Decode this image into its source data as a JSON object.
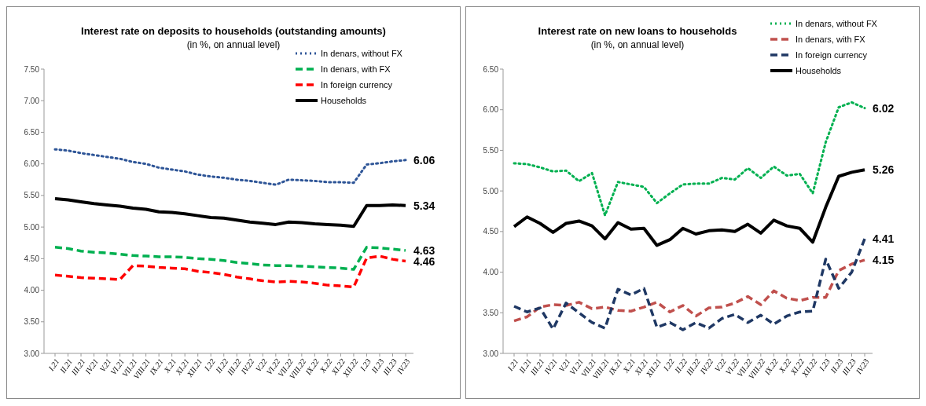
{
  "chart_data": [
    {
      "type": "line",
      "title": "Interest rate on deposits to households (outstanding amounts)",
      "subtitle": "(in %, on annual level)",
      "categories": [
        "I.21",
        "II.21",
        "III.21",
        "IV.21",
        "V.21",
        "VI.21",
        "VII.21",
        "VIII.21",
        "IX.21",
        "X.21",
        "XI.21",
        "XII.21",
        "I.22",
        "II.22",
        "III.22",
        "IV.22",
        "V.22",
        "VI.22",
        "VII.22",
        "VIII.22",
        "IX.22",
        "X.22",
        "XI.22",
        "XII.22",
        "I.23",
        "II.23",
        "III.23",
        "IV.23"
      ],
      "ylim": [
        3,
        7.5
      ],
      "yticks": [
        {
          "value": 3,
          "label": "3.00"
        },
        {
          "value": 3.5,
          "label": "3.50"
        },
        {
          "value": 4,
          "label": "4.00"
        },
        {
          "value": 4.5,
          "label": "4.50"
        },
        {
          "value": 5,
          "label": "5.00"
        },
        {
          "value": 5.5,
          "label": "5.50"
        },
        {
          "value": 6,
          "label": "6.00"
        },
        {
          "value": 6.5,
          "label": "6.50"
        },
        {
          "value": 7,
          "label": "7.00"
        },
        {
          "value": 7.5,
          "label": "7.50"
        }
      ],
      "grid": false,
      "legend": "top right",
      "marker": "none",
      "series": [
        {
          "name": "In denars, without FX",
          "color": "#2e5597",
          "line_style": "dotted",
          "values": [
            6.23,
            6.21,
            6.17,
            6.14,
            6.11,
            6.08,
            6.03,
            6.0,
            5.94,
            5.91,
            5.88,
            5.83,
            5.8,
            5.78,
            5.75,
            5.73,
            5.7,
            5.67,
            5.75,
            5.74,
            5.73,
            5.71,
            5.71,
            5.7,
            5.99,
            6.01,
            6.04,
            6.06
          ],
          "value_labels": [
            null,
            null,
            null,
            null,
            null,
            null,
            null,
            null,
            null,
            null,
            null,
            null,
            null,
            null,
            null,
            null,
            null,
            null,
            null,
            null,
            null,
            null,
            null,
            null,
            null,
            null,
            null,
            "6.06"
          ]
        },
        {
          "name": "In denars, with FX",
          "color": "#00b050",
          "line_style": "dashed",
          "values": [
            4.68,
            4.66,
            4.62,
            4.6,
            4.59,
            4.57,
            4.55,
            4.54,
            4.53,
            4.53,
            4.52,
            4.5,
            4.49,
            4.47,
            4.44,
            4.42,
            4.4,
            4.39,
            4.39,
            4.38,
            4.37,
            4.36,
            4.35,
            4.33,
            4.68,
            4.67,
            4.65,
            4.63
          ],
          "value_labels": [
            null,
            null,
            null,
            null,
            null,
            null,
            null,
            null,
            null,
            null,
            null,
            null,
            null,
            null,
            null,
            null,
            null,
            null,
            null,
            null,
            null,
            null,
            null,
            null,
            null,
            null,
            null,
            "4.63"
          ]
        },
        {
          "name": "In foreign currency",
          "color": "#ff0000",
          "line_style": "dashed",
          "values": [
            4.24,
            4.22,
            4.2,
            4.19,
            4.18,
            4.17,
            4.39,
            4.38,
            4.36,
            4.35,
            4.34,
            4.3,
            4.28,
            4.25,
            4.21,
            4.18,
            4.15,
            4.13,
            4.14,
            4.13,
            4.11,
            4.08,
            4.07,
            4.05,
            4.51,
            4.54,
            4.49,
            4.46
          ],
          "value_labels": [
            null,
            null,
            null,
            null,
            null,
            null,
            null,
            null,
            null,
            null,
            null,
            null,
            null,
            null,
            null,
            null,
            null,
            null,
            null,
            null,
            null,
            null,
            null,
            null,
            null,
            null,
            null,
            "4.46"
          ]
        },
        {
          "name": "Households",
          "color": "#000000",
          "line_style": "solid",
          "values": [
            5.45,
            5.43,
            5.4,
            5.37,
            5.35,
            5.33,
            5.3,
            5.28,
            5.24,
            5.23,
            5.21,
            5.18,
            5.15,
            5.14,
            5.11,
            5.08,
            5.06,
            5.04,
            5.08,
            5.07,
            5.05,
            5.04,
            5.03,
            5.01,
            5.34,
            5.34,
            5.35,
            5.34
          ],
          "value_labels": [
            null,
            null,
            null,
            null,
            null,
            null,
            null,
            null,
            null,
            null,
            null,
            null,
            null,
            null,
            null,
            null,
            null,
            null,
            null,
            null,
            null,
            null,
            null,
            null,
            null,
            null,
            null,
            "5.34"
          ]
        }
      ]
    },
    {
      "type": "line",
      "title": "Interest rate on new loans to households",
      "subtitle": "(in %, on annual level)",
      "categories": [
        "I.21",
        "II.21",
        "III.21",
        "IV.21",
        "V.21",
        "VI.21",
        "VII.21",
        "VIII.21",
        "IX.21",
        "X.21",
        "XI.21",
        "XII.21",
        "I.22",
        "II.22",
        "III.22",
        "IV.22",
        "V.22",
        "VI.22",
        "VII.22",
        "VIII.22",
        "IX.22",
        "X.22",
        "XI.22",
        "XII.22",
        "I.23",
        "II.23",
        "III.23",
        "IV.23"
      ],
      "ylim": [
        3,
        6.5
      ],
      "yticks": [
        {
          "value": 3,
          "label": "3.00"
        },
        {
          "value": 3.5,
          "label": "3.50"
        },
        {
          "value": 4,
          "label": "4.00"
        },
        {
          "value": 4.5,
          "label": "4.50"
        },
        {
          "value": 5,
          "label": "5.00"
        },
        {
          "value": 5.5,
          "label": "5.50"
        },
        {
          "value": 6,
          "label": "6.00"
        },
        {
          "value": 6.5,
          "label": "6.50"
        }
      ],
      "grid": false,
      "legend": "top right",
      "marker": "none",
      "series": [
        {
          "name": "In denars, without FX",
          "color": "#00b050",
          "line_style": "dotted",
          "values": [
            5.34,
            5.33,
            5.29,
            5.24,
            5.25,
            5.12,
            5.22,
            4.7,
            5.11,
            5.08,
            5.05,
            4.85,
            4.97,
            5.08,
            5.09,
            5.09,
            5.16,
            5.14,
            5.28,
            5.16,
            5.3,
            5.19,
            5.21,
            4.97,
            5.6,
            6.03,
            6.09,
            6.02
          ],
          "value_labels": [
            null,
            null,
            null,
            null,
            null,
            null,
            null,
            null,
            null,
            null,
            null,
            null,
            null,
            null,
            null,
            null,
            null,
            null,
            null,
            null,
            null,
            null,
            null,
            null,
            null,
            null,
            null,
            "6.02"
          ]
        },
        {
          "name": "In denars, with FX",
          "color": "#c0504d",
          "line_style": "dashed",
          "values": [
            3.4,
            3.45,
            3.57,
            3.6,
            3.59,
            3.63,
            3.55,
            3.57,
            3.53,
            3.52,
            3.57,
            3.63,
            3.51,
            3.59,
            3.46,
            3.56,
            3.57,
            3.62,
            3.7,
            3.6,
            3.77,
            3.68,
            3.65,
            3.69,
            3.69,
            4.02,
            4.1,
            4.15
          ],
          "value_labels": [
            null,
            null,
            null,
            null,
            null,
            null,
            null,
            null,
            null,
            null,
            null,
            null,
            null,
            null,
            null,
            null,
            null,
            null,
            null,
            null,
            null,
            null,
            null,
            null,
            null,
            null,
            null,
            "4.15"
          ]
        },
        {
          "name": "In foreign currency",
          "color": "#1f3864",
          "line_style": "dashed",
          "values": [
            3.58,
            3.51,
            3.56,
            3.3,
            3.62,
            3.5,
            3.38,
            3.31,
            3.79,
            3.72,
            3.8,
            3.32,
            3.38,
            3.29,
            3.38,
            3.31,
            3.43,
            3.48,
            3.38,
            3.47,
            3.36,
            3.46,
            3.51,
            3.52,
            4.16,
            3.8,
            4.0,
            4.41
          ],
          "value_labels": [
            null,
            null,
            null,
            null,
            null,
            null,
            null,
            null,
            null,
            null,
            null,
            null,
            null,
            null,
            null,
            null,
            null,
            null,
            null,
            null,
            null,
            null,
            null,
            null,
            null,
            null,
            null,
            "4.41"
          ]
        },
        {
          "name": "Households",
          "color": "#000000",
          "line_style": "solid",
          "values": [
            4.56,
            4.68,
            4.6,
            4.49,
            4.6,
            4.63,
            4.57,
            4.41,
            4.61,
            4.53,
            4.54,
            4.33,
            4.4,
            4.54,
            4.47,
            4.51,
            4.52,
            4.5,
            4.59,
            4.48,
            4.64,
            4.57,
            4.54,
            4.37,
            4.8,
            5.18,
            5.23,
            5.26
          ],
          "value_labels": [
            null,
            null,
            null,
            null,
            null,
            null,
            null,
            null,
            null,
            null,
            null,
            null,
            null,
            null,
            null,
            null,
            null,
            null,
            null,
            null,
            null,
            null,
            null,
            null,
            null,
            null,
            null,
            "5.26"
          ]
        }
      ]
    }
  ]
}
